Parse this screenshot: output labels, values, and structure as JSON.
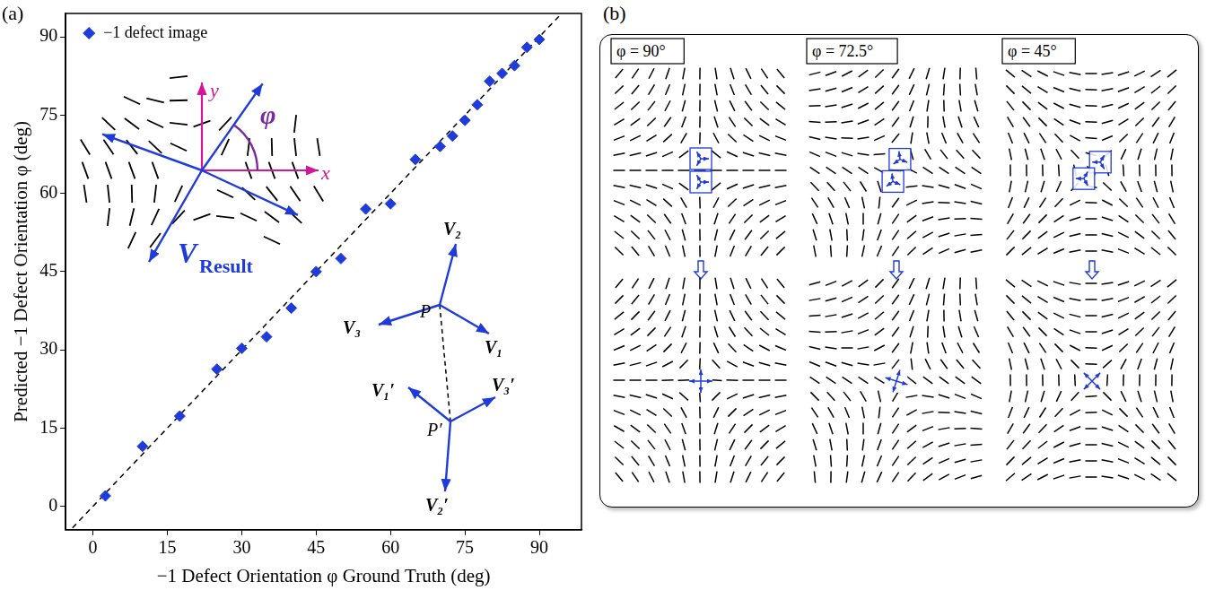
{
  "chart_data": {
    "type": "scatter",
    "panel_label": "(a)",
    "x_label": "−1 Defect Orientation φ Ground Truth (deg)",
    "y_label": "Predicted −1 Defect Orientation φ (deg)",
    "series": [
      {
        "name": "−1 defect image",
        "color": "#1f3bd9",
        "marker": "diamond",
        "x": [
          2.5,
          10,
          17.5,
          25,
          30,
          35,
          40,
          45,
          50,
          55,
          60,
          65,
          70,
          72.5,
          75,
          77.5,
          80,
          82.5,
          85,
          87.5,
          90
        ],
        "values": [
          2,
          11.5,
          17.3,
          26.3,
          30.3,
          32.5,
          38,
          45,
          47.5,
          57,
          58,
          66.5,
          69,
          71,
          74,
          77,
          81.5,
          83,
          84.5,
          88,
          89.5
        ]
      }
    ],
    "xlim": [
      -5.5,
      98.5
    ],
    "ylim": [
      -4.5,
      94.5
    ],
    "xticks": [
      0,
      15,
      30,
      45,
      60,
      75,
      90
    ],
    "yticks": [
      0,
      15,
      30,
      45,
      60,
      75,
      90
    ],
    "grid": false,
    "legend": "upper left",
    "inset_axes": {
      "x": "x",
      "y": "y",
      "angle": "φ",
      "vector": "V",
      "vector_subscript": "Result"
    },
    "inset_vectors": {
      "point": "P",
      "point_prime": "P′",
      "vectors": [
        "V₁",
        "V₂",
        "V₃"
      ],
      "vectors_prime": [
        "V₁′",
        "V₂′",
        "V₃′"
      ]
    }
  },
  "panel_b": {
    "panel_label": "(b)",
    "panels": [
      {
        "title": "φ = 90°",
        "phi": 90
      },
      {
        "title": "φ = 72.5°",
        "phi": 72.5
      },
      {
        "title": "φ = 45°",
        "phi": 45
      }
    ]
  }
}
